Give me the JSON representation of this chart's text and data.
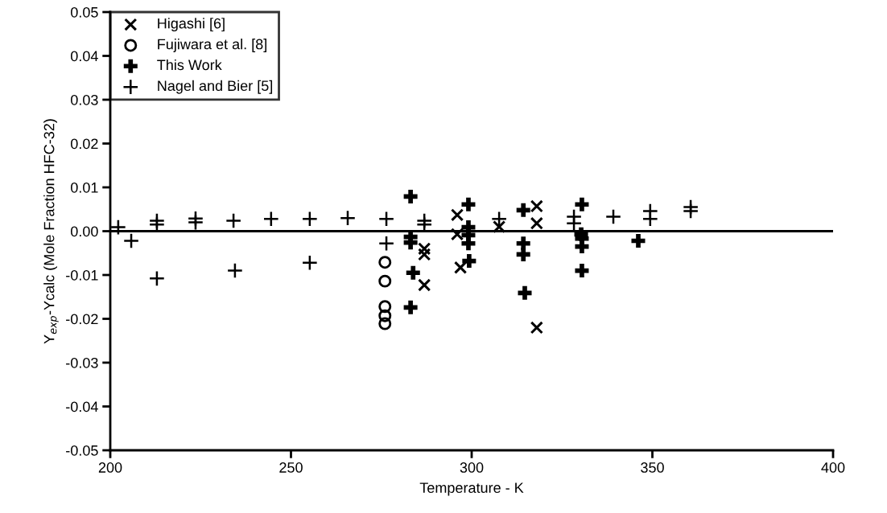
{
  "chart_data": {
    "type": "scatter",
    "xlabel": "Temperature - K",
    "ylabel": "Y$_{exp}$-Ycalc (Mole Fraction HFC-32)",
    "xlim": [
      200,
      400
    ],
    "xticks": [
      200,
      250,
      300,
      350,
      400
    ],
    "ylim": [
      -0.05,
      0.05
    ],
    "yticks": [
      {
        "value": -0.05,
        "label": "-0.05"
      },
      {
        "value": -0.04,
        "label": "-0.04"
      },
      {
        "value": -0.03,
        "label": "-0.03"
      },
      {
        "value": -0.02,
        "label": "-0.02"
      },
      {
        "value": -0.01,
        "label": "-0.01"
      },
      {
        "value": 0,
        "label": "0.00"
      },
      {
        "value": 0.01,
        "label": "0.01"
      },
      {
        "value": 0.02,
        "label": "0.02"
      },
      {
        "value": 0.03,
        "label": "0.03"
      },
      {
        "value": 0.04,
        "label": "0.04"
      },
      {
        "value": 0.05,
        "label": "0.05"
      }
    ],
    "grid": false,
    "legend": "top left",
    "ref_lines": [
      {
        "axis": "y",
        "value": 0,
        "color": "#000000"
      }
    ],
    "series": [
      {
        "name": "Higashi [6]",
        "color": "#000000",
        "marker": "cross",
        "x": [
          286.9,
          296.9,
          286.9,
          286.9,
          296.0,
          296.0,
          307.6,
          318.0,
          318.0,
          318.0
        ],
        "values": [
          -0.0123,
          -0.0083,
          -0.0053,
          -0.004,
          0.0037,
          -0.0007,
          0.001,
          0.0057,
          0.0018,
          -0.022
        ]
      },
      {
        "name": "Fujiwara et al. [8]",
        "color": "#000000",
        "marker": "circle",
        "x": [
          276.0,
          276.0,
          276.0,
          276.0,
          276.0
        ],
        "values": [
          -0.0071,
          -0.0114,
          -0.0172,
          -0.0193,
          -0.0211
        ]
      },
      {
        "name": "This Work",
        "color": "#000000",
        "marker": "cross",
        "x": [
          283.1,
          283.1,
          283.1,
          283.8,
          283.1,
          299.1,
          299.1,
          299.1,
          299.1,
          299.3,
          314.3,
          314.3,
          314.3,
          314.7,
          330.5,
          330.3,
          330.5,
          330.5,
          330.5,
          346.1
        ],
        "values": [
          0.0079,
          -0.0013,
          -0.0026,
          -0.0095,
          -0.0174,
          0.0061,
          0.0009,
          -0.0009,
          -0.0028,
          -0.0068,
          0.0048,
          -0.0028,
          -0.0053,
          -0.0141,
          0.0061,
          -0.0007,
          -0.0017,
          -0.0035,
          -0.009,
          -0.0022
        ]
      },
      {
        "name": "Nagel and Bier [5]",
        "color": "#000000",
        "marker": "cross",
        "x": [
          202.2,
          205.8,
          212.9,
          212.9,
          212.9,
          223.6,
          223.6,
          234.1,
          234.5,
          244.5,
          255.2,
          255.2,
          265.7,
          276.4,
          276.4,
          286.9,
          286.9,
          307.6,
          328.3,
          328.3,
          339.2,
          349.4,
          349.4,
          360.6,
          360.6
        ],
        "values": [
          0.0009,
          -0.0022,
          0.0024,
          0.0015,
          -0.0108,
          0.0029,
          0.002,
          0.0024,
          -0.009,
          0.0028,
          0.0028,
          -0.0072,
          0.003,
          0.0028,
          -0.0028,
          0.0024,
          0.0015,
          0.0028,
          0.0033,
          0.0018,
          0.0033,
          0.0046,
          0.0028,
          0.0055,
          0.0046
        ]
      }
    ]
  }
}
